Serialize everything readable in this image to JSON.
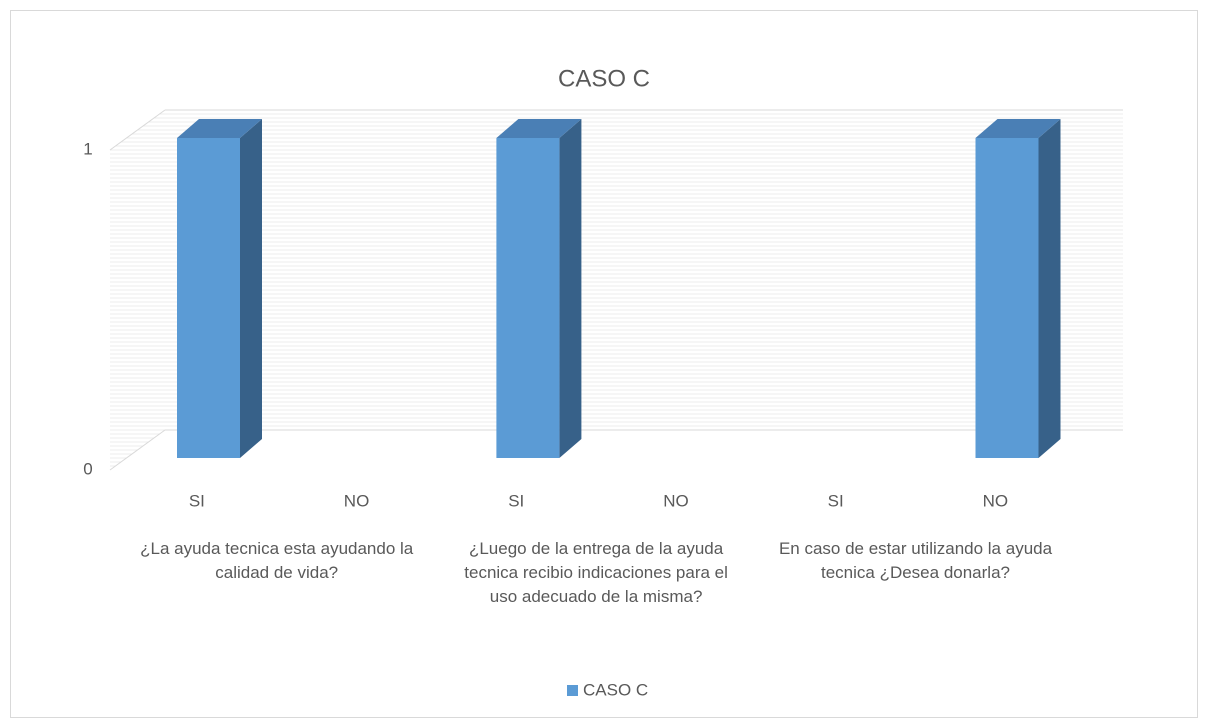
{
  "chart_data": {
    "type": "bar3d",
    "title": "CASO C",
    "categories": [
      "SI",
      "NO",
      "SI",
      "NO",
      "SI",
      "NO"
    ],
    "groups": [
      {
        "label": "¿La ayuda tecnica esta ayudando la calidad de vida?",
        "span": [
          0,
          1
        ]
      },
      {
        "label": "¿Luego de la entrega de la ayuda tecnica recibio indicaciones para el uso adecuado de la misma?",
        "span": [
          2,
          3
        ]
      },
      {
        "label": "En caso de estar utilizando la ayuda tecnica ¿Desea donarla?",
        "span": [
          4,
          5
        ]
      }
    ],
    "series": [
      {
        "name": "CASO C",
        "color": "#5b9bd5",
        "values": [
          1,
          0,
          1,
          0,
          0,
          1
        ]
      }
    ],
    "ylim": [
      0,
      1
    ],
    "yticks": [
      0,
      1
    ],
    "grid": true,
    "legend": "bottom"
  }
}
